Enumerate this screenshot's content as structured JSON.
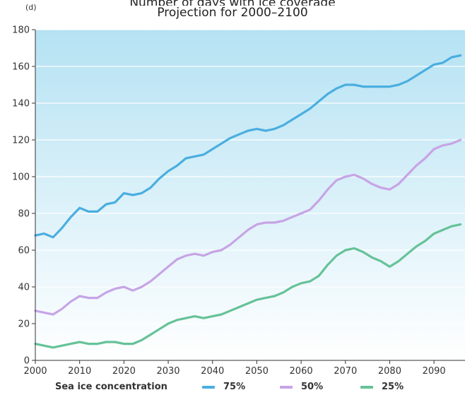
{
  "panel_label": "(d)",
  "title_line1": "Number of days with ice coverage",
  "title_line2": "Projection for 2000–2100",
  "legend_title": "Sea ice concentration",
  "colors": {
    "s75": "#4aaee0",
    "s50": "#c7a4e6",
    "s25": "#66c298",
    "bg_top": "#b5e2f3",
    "bg_bottom": "#ffffff",
    "grid": "#ffffff",
    "axis": "#333333"
  },
  "chart_data": {
    "type": "line",
    "title": "Projection for 2000–2100",
    "xlim": [
      2000,
      2097
    ],
    "ylim": [
      0,
      180
    ],
    "x_ticks": [
      2000,
      2010,
      2020,
      2030,
      2040,
      2050,
      2060,
      2070,
      2080,
      2090
    ],
    "y_ticks": [
      0,
      20,
      40,
      60,
      80,
      100,
      120,
      140,
      160,
      180
    ],
    "grid": "horizontal",
    "legend_placement": "bottom",
    "x": [
      2000,
      2002,
      2004,
      2006,
      2008,
      2010,
      2012,
      2014,
      2016,
      2018,
      2020,
      2022,
      2024,
      2026,
      2028,
      2030,
      2032,
      2034,
      2036,
      2038,
      2040,
      2042,
      2044,
      2046,
      2048,
      2050,
      2052,
      2054,
      2056,
      2058,
      2060,
      2062,
      2064,
      2066,
      2068,
      2070,
      2072,
      2074,
      2076,
      2078,
      2080,
      2082,
      2084,
      2086,
      2088,
      2090,
      2092,
      2094,
      2096
    ],
    "series": [
      {
        "name": "75%",
        "values": [
          68,
          69,
          67,
          72,
          78,
          83,
          81,
          81,
          85,
          86,
          91,
          90,
          91,
          94,
          99,
          103,
          106,
          110,
          111,
          112,
          115,
          118,
          121,
          123,
          125,
          126,
          125,
          126,
          128,
          131,
          134,
          137,
          141,
          145,
          148,
          150,
          150,
          149,
          149,
          149,
          149,
          150,
          152,
          155,
          158,
          161,
          162,
          165,
          166
        ]
      },
      {
        "name": "50%",
        "values": [
          27,
          26,
          25,
          28,
          32,
          35,
          34,
          34,
          37,
          39,
          40,
          38,
          40,
          43,
          47,
          51,
          55,
          57,
          58,
          57,
          59,
          60,
          63,
          67,
          71,
          74,
          75,
          75,
          76,
          78,
          80,
          82,
          87,
          93,
          98,
          100,
          101,
          99,
          96,
          94,
          93,
          96,
          101,
          106,
          110,
          115,
          117,
          118,
          120
        ]
      },
      {
        "name": "25%",
        "values": [
          9,
          8,
          7,
          8,
          9,
          10,
          9,
          9,
          10,
          10,
          9,
          9,
          11,
          14,
          17,
          20,
          22,
          23,
          24,
          23,
          24,
          25,
          27,
          29,
          31,
          33,
          34,
          35,
          37,
          40,
          42,
          43,
          46,
          52,
          57,
          60,
          61,
          59,
          56,
          54,
          51,
          54,
          58,
          62,
          65,
          69,
          71,
          73,
          74
        ]
      }
    ]
  }
}
